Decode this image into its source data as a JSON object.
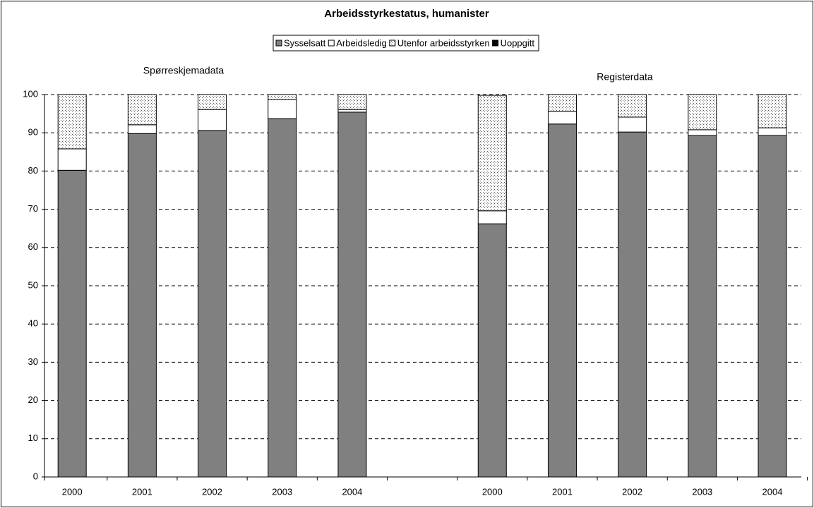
{
  "chart_data": {
    "type": "stacked_bar",
    "title": "Arbeidsstyrkestatus, humanister",
    "annotations": [
      "Spørreskjemadata",
      "Registerdata"
    ],
    "categories": [
      "2000",
      "2001",
      "2002",
      "2003",
      "2004",
      null,
      "2000",
      "2001",
      "2002",
      "2003",
      "2004"
    ],
    "series": [
      {
        "name": "Sysselsatt",
        "color": "#808080",
        "values": [
          80.2,
          89.8,
          90.6,
          93.7,
          95.4,
          null,
          66.2,
          92.3,
          90.2,
          89.3,
          89.3
        ]
      },
      {
        "name": "Arbeidsledig",
        "color": "#ffffff",
        "values": [
          5.6,
          2.3,
          5.5,
          5.0,
          0.7,
          null,
          3.4,
          3.3,
          3.9,
          1.5,
          2.0
        ]
      },
      {
        "name": "Utenfor arbeidsstyrken",
        "color": "#ffffff",
        "pattern": "dots",
        "values": [
          14.2,
          7.9,
          3.9,
          1.3,
          3.9,
          null,
          30.2,
          4.4,
          5.9,
          9.2,
          8.7
        ]
      },
      {
        "name": "Uoppgitt",
        "color": "#000000",
        "values": [
          0,
          0,
          0,
          0,
          0,
          null,
          0,
          0,
          0,
          0,
          0
        ]
      }
    ],
    "ylim": [
      0,
      100
    ],
    "yticks": [
      0,
      10,
      20,
      30,
      40,
      50,
      60,
      70,
      80,
      90,
      100
    ],
    "grid": true,
    "legend": "top"
  }
}
